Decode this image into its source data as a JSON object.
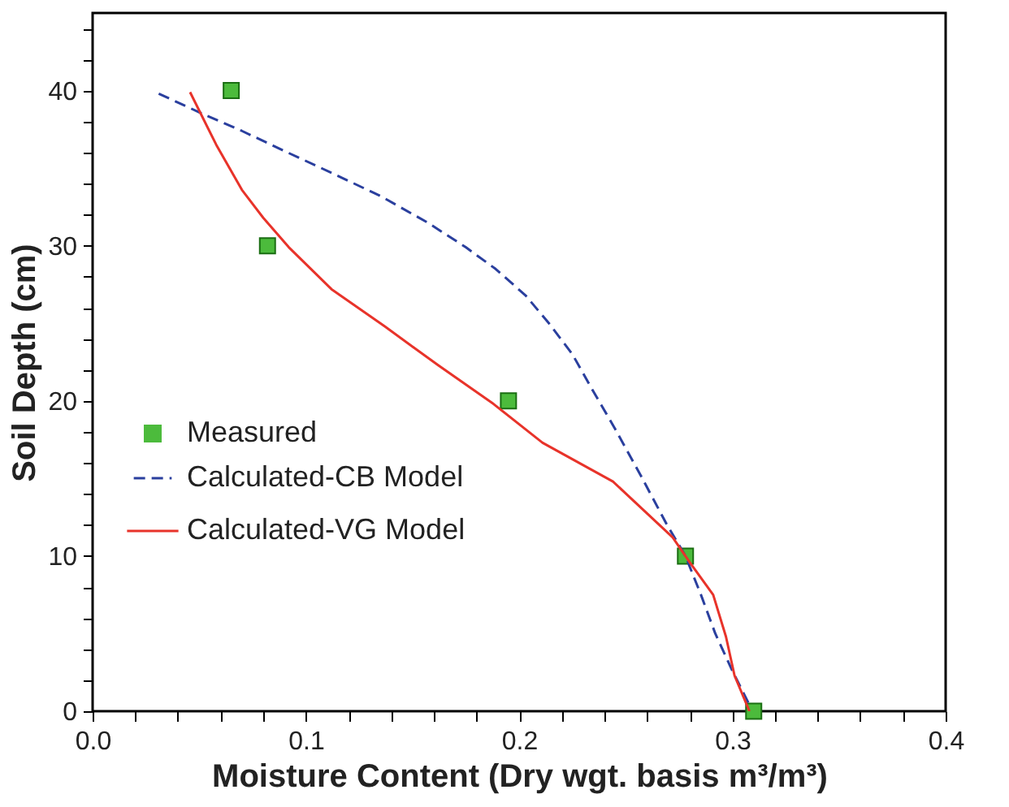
{
  "chart_data": {
    "type": "line",
    "xlabel": "Moisture Content (Dry wgt. basis m³/m³)",
    "ylabel": "Soil Depth (cm)",
    "xlim": [
      0,
      0.4
    ],
    "ylim": [
      0,
      45
    ],
    "xticks": [
      {
        "value": 0,
        "label": "0.0"
      },
      {
        "value": 0.02,
        "label": null
      },
      {
        "value": 0.04,
        "label": null
      },
      {
        "value": 0.06,
        "label": null
      },
      {
        "value": 0.08,
        "label": null
      },
      {
        "value": 0.1,
        "label": "0.1"
      },
      {
        "value": 0.12,
        "label": null
      },
      {
        "value": 0.14,
        "label": null
      },
      {
        "value": 0.16,
        "label": null
      },
      {
        "value": 0.18,
        "label": null
      },
      {
        "value": 0.2,
        "label": "0.2"
      },
      {
        "value": 0.22,
        "label": null
      },
      {
        "value": 0.24,
        "label": null
      },
      {
        "value": 0.26,
        "label": null
      },
      {
        "value": 0.28,
        "label": null
      },
      {
        "value": 0.3,
        "label": "0.3"
      },
      {
        "value": 0.32,
        "label": null
      },
      {
        "value": 0.34,
        "label": null
      },
      {
        "value": 0.36,
        "label": null
      },
      {
        "value": 0.38,
        "label": null
      },
      {
        "value": 0.4,
        "label": "0.4"
      }
    ],
    "yticks": [
      0,
      {
        "value": 2,
        "label": null
      },
      {
        "value": 4,
        "label": null
      },
      {
        "value": 6,
        "label": null
      },
      {
        "value": 8,
        "label": null
      },
      10,
      {
        "value": 12,
        "label": null
      },
      {
        "value": 14,
        "label": null
      },
      {
        "value": 16,
        "label": null
      },
      {
        "value": 18,
        "label": null
      },
      20,
      {
        "value": 22,
        "label": null
      },
      {
        "value": 24,
        "label": null
      },
      {
        "value": 26,
        "label": null
      },
      {
        "value": 28,
        "label": null
      },
      30,
      {
        "value": 32,
        "label": null
      },
      {
        "value": 34,
        "label": null
      },
      {
        "value": 36,
        "label": null
      },
      {
        "value": 38,
        "label": null
      },
      40,
      {
        "value": 42,
        "label": null
      },
      {
        "value": 44,
        "label": null
      }
    ],
    "grid": false,
    "legend": "left",
    "series": [
      {
        "name": "Measured",
        "type": "scatter",
        "marker": "square",
        "color": "#4cbb3c",
        "x": [
          0.065,
          0.082,
          0.195,
          0.278,
          0.31
        ],
        "values": [
          40,
          30,
          20,
          10,
          0
        ]
      },
      {
        "name": "Calculated-CB Model",
        "type": "line",
        "line_style": "dashed",
        "color": "#2a3f9e",
        "x": [
          0.031,
          0.05,
          0.07,
          0.09,
          0.112,
          0.135,
          0.157,
          0.175,
          0.189,
          0.203,
          0.214,
          0.225,
          0.234,
          0.245,
          0.257,
          0.269,
          0.278,
          0.285,
          0.292,
          0.3,
          0.308
        ],
        "values": [
          39.8,
          38.6,
          37.4,
          36.1,
          34.7,
          33.2,
          31.5,
          29.9,
          28.5,
          26.8,
          25,
          23,
          20.8,
          18.2,
          15.2,
          12.1,
          10,
          7.6,
          5,
          2.6,
          0.4
        ]
      },
      {
        "name": "Calculated-VG Model",
        "type": "line",
        "line_style": "solid",
        "color": "#e8332a",
        "x": [
          0.0457,
          0.058,
          0.07,
          0.08,
          0.092,
          0.112,
          0.137,
          0.162,
          0.188,
          0.211,
          0.244,
          0.272,
          0.28,
          0.291,
          0.297,
          0.301,
          0.308
        ],
        "values": [
          39.9,
          36.5,
          33.6,
          31.8,
          29.9,
          27.2,
          24.8,
          22.3,
          19.8,
          17.3,
          14.8,
          11.2,
          9.6,
          7.5,
          4.8,
          2.3,
          0
        ]
      }
    ]
  }
}
